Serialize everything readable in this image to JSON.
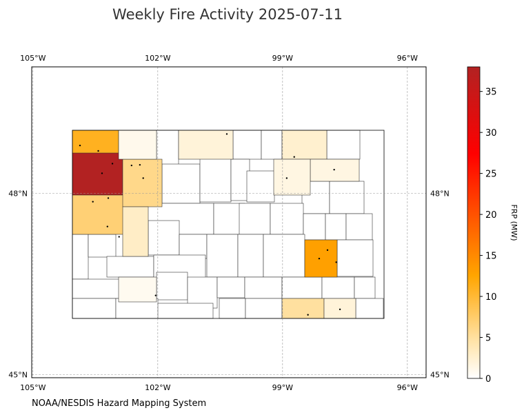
{
  "map": {
    "title": "Weekly Fire Activity 2025-07-11",
    "footer": "NOAA/NESDIS Hazard Mapping System",
    "lon_lim": [
      -105.03,
      -95.55
    ],
    "lat_lim": [
      44.95,
      50.09
    ],
    "lon_ticks": [
      {
        "value": -105,
        "label": "105°W"
      },
      {
        "value": -102,
        "label": "102°W"
      },
      {
        "value": -99,
        "label": "99°W"
      },
      {
        "value": -96,
        "label": "96°W"
      }
    ],
    "lat_ticks": [
      {
        "value": 48,
        "label": "48°N"
      },
      {
        "value": 45,
        "label": "45°N"
      }
    ],
    "grid": true,
    "colorbar": {
      "label": "FRP (MW)",
      "lim": [
        0,
        38
      ],
      "ticks": [
        0,
        5,
        10,
        15,
        20,
        25,
        30,
        35
      ],
      "colors": [
        "#ffffff",
        "#ffe3a8",
        "#ffa500",
        "#ff0000",
        "#b22222"
      ]
    },
    "county_frp": [
      11,
      38,
      7,
      6,
      1,
      3,
      2,
      2.5,
      1.5,
      1.5,
      13,
      5,
      2,
      0.8
    ],
    "fires": {
      "lon": [
        -103.87,
        -103.43,
        -103.09,
        -103.34,
        -103.56,
        -103.19,
        -103.21,
        -102.43,
        -102.63,
        -102.35,
        -102.93,
        -100.34,
        -97.76,
        -97.92,
        -98.12,
        -97.71,
        -98.39,
        -97.62,
        -102.05,
        -98.72,
        -98.9
      ],
      "lat": [
        48.79,
        48.7,
        48.49,
        48.33,
        47.86,
        47.92,
        47.45,
        48.47,
        48.46,
        48.25,
        47.28,
        48.98,
        48.39,
        47.06,
        46.92,
        46.86,
        45.99,
        46.08,
        46.31,
        48.6,
        48.25
      ]
    }
  }
}
